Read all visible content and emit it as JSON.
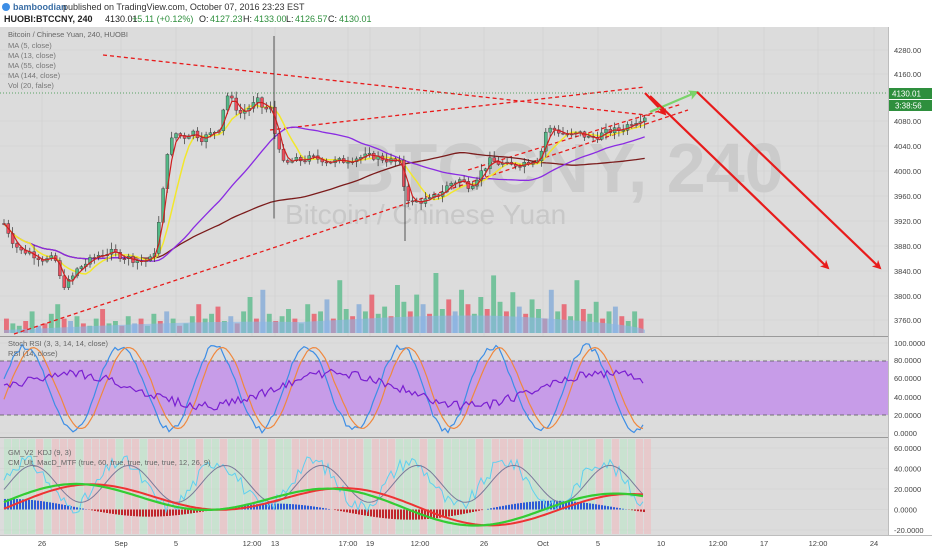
{
  "header": {
    "author": "bamboodian",
    "published": "published on TradingView.com, October 07, 2016 23:23 EST",
    "symbol": "HUOBI:BTCCNY, 240",
    "last": "4130.01",
    "change": "+5.11 (+0.12%)",
    "open_label": "O:",
    "open": "4127.23",
    "high_label": "H:",
    "high": "4133.00",
    "low_label": "L:",
    "low": "4126.57",
    "close_label": "C:",
    "close": "4130.01"
  },
  "legend": {
    "title": "Bitcoin / Chinese Yuan, 240, HUOBI",
    "items": [
      "MA (5, close)",
      "MA (13, close)",
      "MA (55, close)",
      "MA (144, close)",
      "Vol (20, false)"
    ]
  },
  "watermark": {
    "symbol": "BTCCNY, 240",
    "name": "Bitcoin / Chinese Yuan"
  },
  "badges": {
    "price": "4130.01",
    "time": "3:38:56"
  },
  "colors": {
    "up": "#53b987",
    "down": "#eb4d5c",
    "ma5": "#cf1f1f",
    "ma13": "#f2e72c",
    "ma55": "#8a2be2",
    "ma144": "#7b1b1b",
    "arrow": "#e81b1b",
    "arrow_up": "#7ad36a",
    "rsi_band": "#c79ce8",
    "badge": "#2e8f3d"
  },
  "chart_data": [
    {
      "type": "candlestick",
      "title": "Bitcoin / Chinese Yuan, 240, HUOBI",
      "ylim": [
        3720,
        4280
      ],
      "y_ticks": [
        "4280.00",
        "4160.00",
        "4080.00",
        "4040.00",
        "4000.00",
        "3960.00",
        "3920.00",
        "3880.00",
        "3840.00",
        "3800.00",
        "3760.00"
      ],
      "y_tick_values": [
        4280,
        4160,
        4080,
        4040,
        4000,
        3960,
        3920,
        3880,
        3840,
        3800,
        3760
      ],
      "x_ticks": [
        "26",
        "Sep",
        "5",
        "12:00",
        "13",
        "17:00",
        "19",
        "12:00",
        "26",
        "Oct",
        "5",
        "10",
        "12:00",
        "17",
        "12:00",
        "24"
      ],
      "last_price": 4130.01,
      "price_path": [
        [
          0,
          3930
        ],
        [
          8,
          3900
        ],
        [
          14,
          3875
        ],
        [
          22,
          3858
        ],
        [
          28,
          3860
        ],
        [
          36,
          3850
        ],
        [
          45,
          3842
        ],
        [
          55,
          3845
        ],
        [
          62,
          3790
        ],
        [
          70,
          3800
        ],
        [
          78,
          3825
        ],
        [
          88,
          3838
        ],
        [
          98,
          3852
        ],
        [
          110,
          3858
        ],
        [
          125,
          3848
        ],
        [
          140,
          3840
        ],
        [
          150,
          3842
        ],
        [
          155,
          3862
        ],
        [
          162,
          3960
        ],
        [
          168,
          4070
        ],
        [
          176,
          4095
        ],
        [
          184,
          4088
        ],
        [
          192,
          4100
        ],
        [
          202,
          4085
        ],
        [
          212,
          4095
        ],
        [
          220,
          4108
        ],
        [
          226,
          4175
        ],
        [
          232,
          4160
        ],
        [
          240,
          4135
        ],
        [
          248,
          4145
        ],
        [
          258,
          4160
        ],
        [
          265,
          4140
        ],
        [
          270,
          4152
        ],
        [
          274,
          4100
        ],
        [
          278,
          4080
        ],
        [
          284,
          4030
        ],
        [
          292,
          4040
        ],
        [
          302,
          4042
        ],
        [
          312,
          4046
        ],
        [
          322,
          4044
        ],
        [
          332,
          4038
        ],
        [
          342,
          4040
        ],
        [
          352,
          4045
        ],
        [
          362,
          4048
        ],
        [
          372,
          4050
        ],
        [
          382,
          4045
        ],
        [
          392,
          4040
        ],
        [
          400,
          4035
        ],
        [
          404,
          3990
        ],
        [
          410,
          3955
        ],
        [
          420,
          3960
        ],
        [
          430,
          3962
        ],
        [
          440,
          3975
        ],
        [
          450,
          3995
        ],
        [
          460,
          4002
        ],
        [
          470,
          3990
        ],
        [
          480,
          4015
        ],
        [
          490,
          4040
        ],
        [
          500,
          4035
        ],
        [
          510,
          4030
        ],
        [
          520,
          4035
        ],
        [
          530,
          4040
        ],
        [
          540,
          4048
        ],
        [
          546,
          4100
        ],
        [
          552,
          4105
        ],
        [
          560,
          4098
        ],
        [
          570,
          4090
        ],
        [
          580,
          4095
        ],
        [
          590,
          4085
        ],
        [
          600,
          4092
        ],
        [
          610,
          4100
        ],
        [
          620,
          4102
        ],
        [
          630,
          4115
        ],
        [
          640,
          4125
        ],
        [
          645,
          4130
        ]
      ],
      "volume_heights": [
        6,
        4,
        3,
        5,
        9,
        3,
        4,
        8,
        12,
        6,
        5,
        7,
        4,
        3,
        6,
        10,
        4,
        5,
        3,
        7,
        4,
        6,
        3,
        8,
        5,
        9,
        6,
        3,
        4,
        7,
        12,
        6,
        8,
        11,
        5,
        7,
        4,
        9,
        15,
        6,
        18,
        8,
        5,
        7,
        10,
        6,
        4,
        12,
        8,
        9,
        14,
        6,
        22,
        10,
        7,
        12,
        9,
        16,
        8,
        11,
        7,
        20,
        13,
        9,
        16,
        12,
        8,
        25,
        10,
        14,
        9,
        18,
        12,
        8,
        15,
        10,
        24,
        13,
        9,
        17,
        11,
        8,
        14,
        10,
        6,
        18,
        9,
        12,
        7,
        22,
        10,
        8,
        13,
        6,
        9,
        11,
        7,
        5,
        9,
        6
      ]
    },
    {
      "type": "line",
      "title": "Stoch RSI (3, 3, 14, 14, close)",
      "title_rsi": "RSI (14, close)",
      "ylim": [
        0,
        100
      ],
      "y_ticks": [
        "100.0000",
        "80.0000",
        "60.0000",
        "40.0000",
        "20.0000",
        "0.0000"
      ],
      "y_tick_values": [
        100,
        80,
        60,
        40,
        20,
        0
      ]
    },
    {
      "type": "line",
      "title": "GM_V2_KDJ (9, 3)",
      "title2": "CM_Ult_MacD_MTF (true, 60, true, true, true, true, 12, 26, 9)",
      "ylim": [
        -20,
        60
      ],
      "y_ticks": [
        "60.0000",
        "40.0000",
        "20.0000",
        "0.0000",
        "-20.0000"
      ],
      "y_tick_values": [
        60,
        40,
        20,
        0,
        -20
      ]
    }
  ]
}
